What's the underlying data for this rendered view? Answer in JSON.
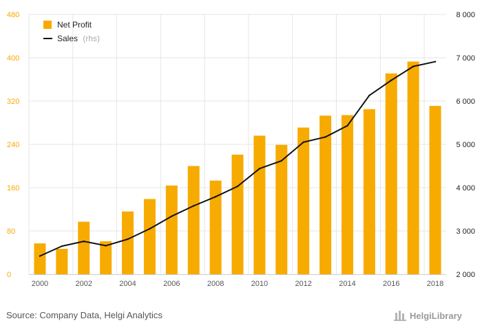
{
  "colors": {
    "bar": "#f7ab00",
    "line": "#111111",
    "left_axis": "#f7a800",
    "right_axis": "#222222"
  },
  "chart_data": {
    "type": "bar",
    "title": "",
    "xlabel": "",
    "ylabel": "",
    "x": [
      2000,
      2001,
      2002,
      2003,
      2004,
      2005,
      2006,
      2007,
      2008,
      2009,
      2010,
      2011,
      2012,
      2013,
      2014,
      2015,
      2016,
      2017,
      2018
    ],
    "x_tick_labels": [
      "2000",
      "2002",
      "2004",
      "2006",
      "2008",
      "2010",
      "2012",
      "2014",
      "2016",
      "2018"
    ],
    "ylim": [
      0,
      480
    ],
    "y_ticks_left": [
      "0",
      "80",
      "160",
      "240",
      "320",
      "400",
      "480"
    ],
    "y2lim": [
      2000,
      8000
    ],
    "y_ticks_right": [
      "2 000",
      "3 000",
      "4 000",
      "5 000",
      "6 000",
      "7 000",
      "8 000"
    ],
    "grid": true,
    "legend_position": "top-left",
    "series": [
      {
        "name": "Net Profit",
        "type": "bar",
        "axis": "left",
        "values": [
          57,
          47,
          97,
          61,
          116,
          139,
          164,
          200,
          173,
          221,
          256,
          239,
          271,
          293,
          294,
          305,
          371,
          393,
          311
        ]
      },
      {
        "name": "Sales",
        "name_suffix": "(rhs)",
        "type": "line",
        "axis": "right",
        "values": [
          2420,
          2650,
          2760,
          2660,
          2810,
          3050,
          3340,
          3580,
          3790,
          4030,
          4440,
          4620,
          5050,
          5170,
          5430,
          6130,
          6480,
          6800,
          6910
        ]
      }
    ]
  },
  "footer": {
    "source": "Source: Company Data, Helgi Analytics",
    "brand": "HelgiLibrary"
  }
}
